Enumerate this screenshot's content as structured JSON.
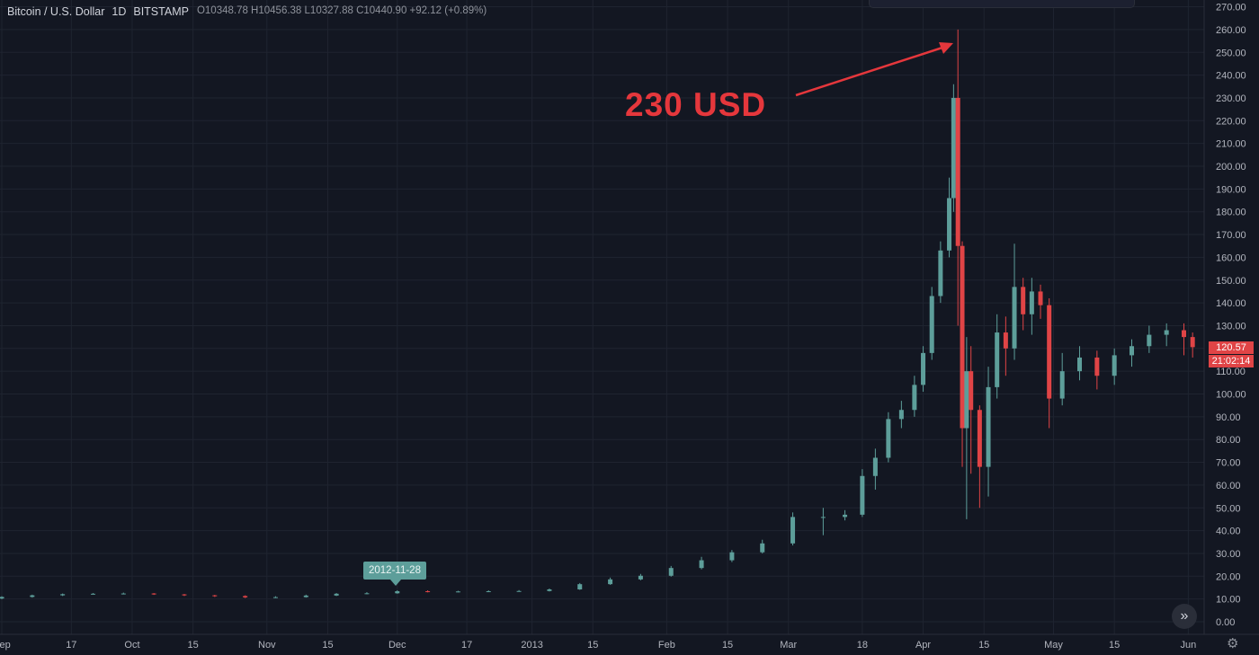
{
  "header": {
    "symbol": "Bitcoin / U.S. Dollar",
    "interval": "1D",
    "exchange": "BITSTAMP",
    "ohlc": "O10348.78  H10456.38  L10327.88  C10440.90  +92.12 (+0.89%)"
  },
  "colors": {
    "background": "#131722",
    "grid": "#1f2430",
    "up": "#5d9e9a",
    "down": "#e04446",
    "annotation": "#e5373c",
    "axis_text": "#b2b5be"
  },
  "annotation": {
    "text": "230 USD"
  },
  "crosshair_date_label": "2012-11-28",
  "last_price_label": "120.57",
  "countdown_label": "21:02:14",
  "chart_data": {
    "type": "candlestick",
    "title": "Bitcoin / U.S. Dollar 1D BITSTAMP",
    "ylim": [
      0,
      270
    ],
    "y_ticks": [
      0,
      10,
      20,
      30,
      40,
      50,
      60,
      70,
      80,
      90,
      100,
      110,
      120,
      130,
      140,
      150,
      160,
      170,
      180,
      190,
      200,
      210,
      220,
      230,
      240,
      250,
      260,
      270
    ],
    "x_tick_labels": [
      "Sep",
      "17",
      "Oct",
      "15",
      "Nov",
      "15",
      "Dec",
      "17",
      "2013",
      "15",
      "Feb",
      "15",
      "Mar",
      "18",
      "Apr",
      "15",
      "May",
      "15",
      "Jun"
    ],
    "x_tick_dates": [
      "2012-09-01",
      "2012-09-17",
      "2012-10-01",
      "2012-10-15",
      "2012-11-01",
      "2012-11-15",
      "2012-12-01",
      "2012-12-17",
      "2013-01-01",
      "2013-01-15",
      "2013-02-01",
      "2013-02-15",
      "2013-03-01",
      "2013-03-18",
      "2013-04-01",
      "2013-04-15",
      "2013-05-01",
      "2013-05-15",
      "2013-06-01"
    ],
    "x_range": [
      "2012-09-01",
      "2013-06-03"
    ],
    "grid": true,
    "series": [
      {
        "dates": [
          "2012-09-01",
          "2012-09-08",
          "2012-09-15",
          "2012-09-22",
          "2012-09-29",
          "2012-10-06",
          "2012-10-13",
          "2012-10-20",
          "2012-10-27",
          "2012-11-03",
          "2012-11-10",
          "2012-11-17",
          "2012-11-24",
          "2012-12-01",
          "2012-12-08",
          "2012-12-15",
          "2012-12-22",
          "2012-12-29",
          "2013-01-05",
          "2013-01-12",
          "2013-01-19",
          "2013-01-26",
          "2013-02-02",
          "2013-02-09",
          "2013-02-16",
          "2013-02-23",
          "2013-03-02",
          "2013-03-09",
          "2013-03-14",
          "2013-03-18",
          "2013-03-21",
          "2013-03-24",
          "2013-03-27",
          "2013-03-30",
          "2013-04-01",
          "2013-04-03",
          "2013-04-05",
          "2013-04-07",
          "2013-04-08",
          "2013-04-09",
          "2013-04-10",
          "2013-04-11",
          "2013-04-12",
          "2013-04-14",
          "2013-04-16",
          "2013-04-18",
          "2013-04-20",
          "2013-04-22",
          "2013-04-24",
          "2013-04-26",
          "2013-04-28",
          "2013-04-30",
          "2013-05-03",
          "2013-05-07",
          "2013-05-11",
          "2013-05-15",
          "2013-05-19",
          "2013-05-23",
          "2013-05-27",
          "2013-05-31",
          "2013-06-02"
        ],
        "open": [
          10.2,
          10.9,
          11.6,
          12.1,
          12.3,
          12.4,
          12.0,
          11.6,
          11.3,
          10.7,
          10.8,
          11.5,
          12.3,
          12.5,
          13.4,
          13.3,
          13.3,
          13.4,
          13.5,
          14.2,
          16.5,
          18.6,
          20.2,
          23.6,
          27.0,
          30.5,
          34.4,
          46.0,
          46.0,
          47.0,
          64.0,
          72.0,
          89.0,
          93.0,
          104.0,
          118.0,
          143.0,
          163.0,
          186.0,
          230.0,
          165.0,
          85.0,
          110.0,
          93.0,
          68.0,
          103.0,
          127.0,
          120.0,
          147.0,
          135.0,
          145.0,
          139.0,
          98.0,
          110.0,
          116.0,
          108.0,
          117.0,
          121.0,
          126.0,
          128.0,
          125.0
        ],
        "close": [
          10.9,
          11.6,
          12.1,
          12.3,
          12.4,
          12.0,
          11.6,
          11.3,
          10.7,
          10.8,
          11.5,
          12.3,
          12.5,
          13.4,
          13.3,
          13.3,
          13.4,
          13.5,
          14.2,
          16.5,
          18.6,
          20.2,
          23.6,
          27.0,
          30.5,
          34.4,
          46.0,
          46.0,
          47.0,
          64.0,
          72.0,
          89.0,
          93.0,
          104.0,
          118.0,
          143.0,
          163.0,
          186.0,
          230.0,
          165.0,
          85.0,
          110.0,
          93.0,
          68.0,
          103.0,
          127.0,
          120.0,
          147.0,
          135.0,
          145.0,
          139.0,
          98.0,
          110.0,
          116.0,
          108.0,
          117.0,
          121.0,
          126.0,
          128.0,
          125.0,
          120.57
        ],
        "high": [
          11.2,
          11.9,
          12.4,
          12.6,
          12.8,
          12.6,
          12.2,
          11.8,
          11.6,
          11.2,
          11.9,
          12.6,
          13.0,
          13.8,
          13.8,
          13.6,
          13.8,
          13.9,
          14.6,
          17.0,
          19.4,
          21.0,
          24.5,
          28.5,
          31.5,
          36.0,
          48.0,
          50.0,
          49.0,
          67.0,
          76.0,
          92.0,
          97.0,
          108.0,
          121.0,
          147.0,
          167.0,
          195.0,
          236.0,
          260.0,
          167.0,
          125.0,
          121.0,
          95.0,
          112.0,
          135.0,
          134.0,
          166.0,
          151.0,
          151.0,
          148.0,
          142.0,
          118.0,
          121.0,
          119.0,
          120.0,
          124.0,
          130.0,
          131.0,
          131.0,
          127.0
        ],
        "low": [
          9.9,
          10.6,
          11.3,
          11.9,
          12.0,
          11.8,
          11.3,
          10.9,
          10.4,
          10.4,
          10.6,
          11.3,
          12.1,
          12.3,
          12.9,
          12.9,
          13.0,
          13.2,
          13.3,
          14.0,
          16.2,
          18.2,
          19.8,
          23.0,
          26.2,
          30.0,
          33.5,
          38.0,
          44.5,
          46.0,
          58.0,
          70.0,
          85.0,
          90.0,
          101.0,
          115.0,
          140.0,
          160.0,
          180.0,
          130.0,
          68.0,
          45.0,
          65.0,
          50.0,
          55.0,
          98.0,
          108.0,
          115.0,
          128.0,
          126.0,
          133.0,
          85.0,
          95.0,
          106.0,
          102.0,
          104.0,
          112.0,
          118.0,
          121.0,
          117.0,
          116.0
        ]
      }
    ]
  }
}
